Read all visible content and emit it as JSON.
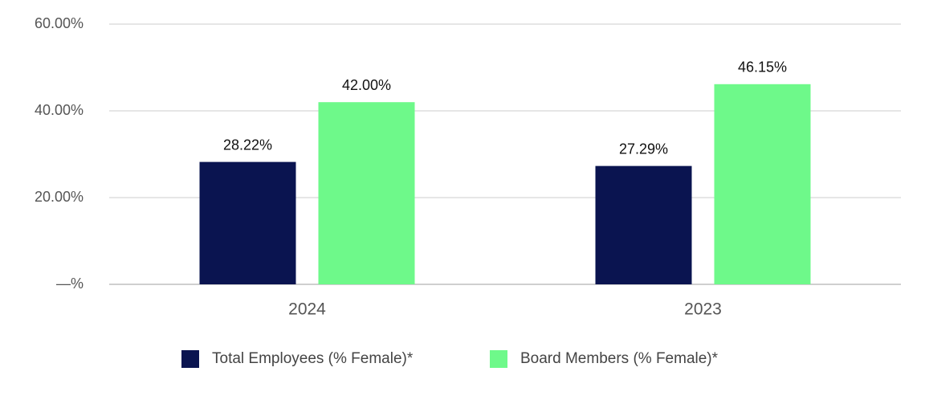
{
  "chart_data": {
    "type": "bar",
    "categories": [
      "2024",
      "2023"
    ],
    "series": [
      {
        "name": "Total Employees (% Female)*",
        "color": "#0a1450",
        "values": [
          28.22,
          27.29
        ],
        "value_labels": [
          "28.22%",
          "27.29%"
        ]
      },
      {
        "name": "Board Members (% Female)*",
        "color": "#6ef98a",
        "values": [
          42.0,
          46.15
        ],
        "value_labels": [
          "42.00%",
          "46.15%"
        ]
      }
    ],
    "ylim": [
      0,
      60
    ],
    "yticks": [
      {
        "value": 0,
        "label": "—%"
      },
      {
        "value": 20,
        "label": "20.00%"
      },
      {
        "value": 40,
        "label": "40.00%"
      },
      {
        "value": 60,
        "label": "60.00%"
      }
    ],
    "grid": true,
    "legend": "bottom"
  }
}
